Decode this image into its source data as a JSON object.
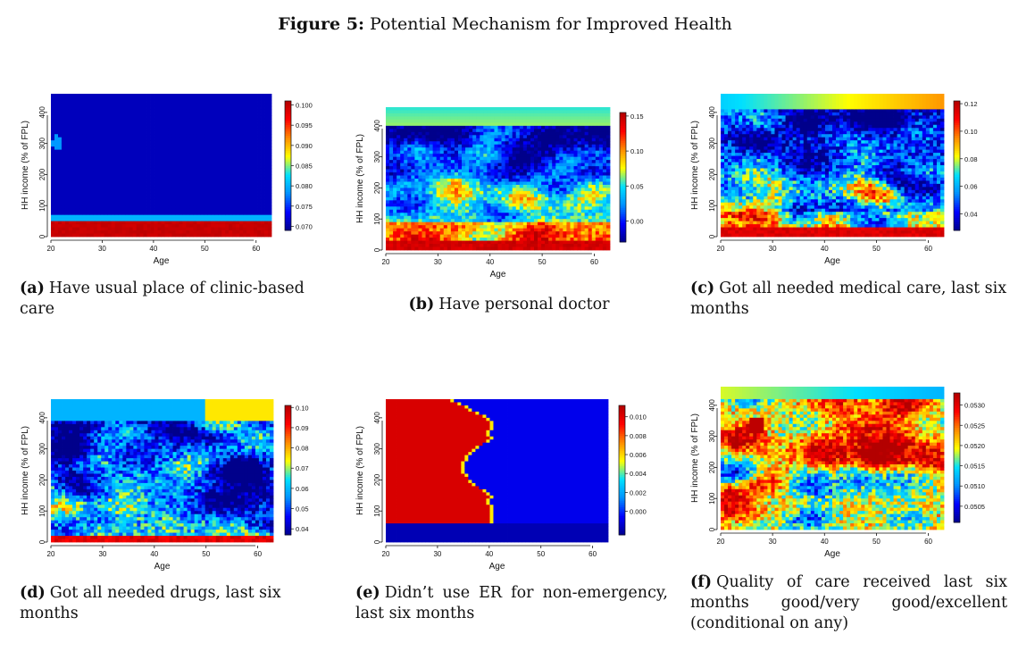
{
  "figure": {
    "label": "Figure 5:",
    "title": "Potential Mechanism for Improved Health"
  },
  "colors": [
    "#00008b",
    "#0000ff",
    "#0090ff",
    "#00e0ff",
    "#ffff00",
    "#ff8c00",
    "#ff0000",
    "#b30000"
  ],
  "chart_data": [
    {
      "id": "a",
      "type": "heatmap",
      "caption_label": "(a)",
      "caption": "Have usual place of clinic-based care",
      "xlabel": "Age",
      "ylabel": "HH income (% of FPL)",
      "xticks": [
        "20",
        "30",
        "40",
        "50",
        "60"
      ],
      "yticks": [
        "0",
        "100",
        "200",
        "300",
        "400"
      ],
      "xlim": [
        20,
        63
      ],
      "ylim": [
        0,
        460
      ],
      "colorbar_ticks": [
        "0.070",
        "0.075",
        "0.080",
        "0.085",
        "0.090",
        "0.095",
        "0.100"
      ],
      "colorbar_range": [
        0.069,
        0.101
      ]
    },
    {
      "id": "b",
      "type": "heatmap",
      "caption_label": "(b)",
      "caption": "Have personal doctor",
      "xlabel": "Age",
      "ylabel": "HH income (% of FPL)",
      "xticks": [
        "20",
        "30",
        "40",
        "50",
        "60"
      ],
      "yticks": [
        "0",
        "100",
        "200",
        "300",
        "400"
      ],
      "xlim": [
        20,
        63
      ],
      "ylim": [
        0,
        460
      ],
      "colorbar_ticks": [
        "0.00",
        "0.05",
        "0.10",
        "0.15"
      ],
      "colorbar_range": [
        -0.03,
        0.155
      ]
    },
    {
      "id": "c",
      "type": "heatmap",
      "caption_label": "(c)",
      "caption": "Got all needed medical care, last six months",
      "xlabel": "Age",
      "ylabel": "HH income (% of FPL)",
      "xticks": [
        "20",
        "30",
        "40",
        "50",
        "60"
      ],
      "yticks": [
        "0",
        "100",
        "200",
        "300",
        "400"
      ],
      "xlim": [
        20,
        63
      ],
      "ylim": [
        0,
        460
      ],
      "colorbar_ticks": [
        "0.04",
        "0.06",
        "0.08",
        "0.10",
        "0.12"
      ],
      "colorbar_range": [
        0.028,
        0.122
      ]
    },
    {
      "id": "d",
      "type": "heatmap",
      "caption_label": "(d)",
      "caption": "Got all needed drugs, last six months",
      "xlabel": "Age",
      "ylabel": "HH income (% of FPL)",
      "xticks": [
        "20",
        "30",
        "40",
        "50",
        "60"
      ],
      "yticks": [
        "0",
        "100",
        "200",
        "300",
        "400"
      ],
      "xlim": [
        20,
        63
      ],
      "ylim": [
        0,
        460
      ],
      "colorbar_ticks": [
        "0.04",
        "0.05",
        "0.06",
        "0.07",
        "0.08",
        "0.09",
        "0.10"
      ],
      "colorbar_range": [
        0.037,
        0.101
      ]
    },
    {
      "id": "e",
      "type": "heatmap",
      "caption_label": "(e)",
      "caption": "Didn’t use ER for non-emergency, last six months",
      "xlabel": "Age",
      "ylabel": "HH income (% of FPL)",
      "xticks": [
        "20",
        "30",
        "40",
        "50",
        "60"
      ],
      "yticks": [
        "0",
        "100",
        "200",
        "300",
        "400"
      ],
      "xlim": [
        20,
        63
      ],
      "ylim": [
        0,
        460
      ],
      "colorbar_ticks": [
        "0.000",
        "0.002",
        "0.004",
        "0.006",
        "0.008",
        "0.010"
      ],
      "colorbar_range": [
        -0.0025,
        0.0112
      ]
    },
    {
      "id": "f",
      "type": "heatmap",
      "caption_label": "(f)",
      "caption": "Quality of care received last six months good/very good/excellent (conditional on any)",
      "xlabel": "Age",
      "ylabel": "HH income (% of FPL)",
      "xticks": [
        "20",
        "30",
        "40",
        "50",
        "60"
      ],
      "yticks": [
        "0",
        "100",
        "200",
        "300",
        "400"
      ],
      "xlim": [
        20,
        63
      ],
      "ylim": [
        0,
        460
      ],
      "colorbar_ticks": [
        "0.0505",
        "0.0510",
        "0.0515",
        "0.0520",
        "0.0525",
        "0.0530"
      ],
      "colorbar_range": [
        0.0501,
        0.0533
      ]
    }
  ]
}
